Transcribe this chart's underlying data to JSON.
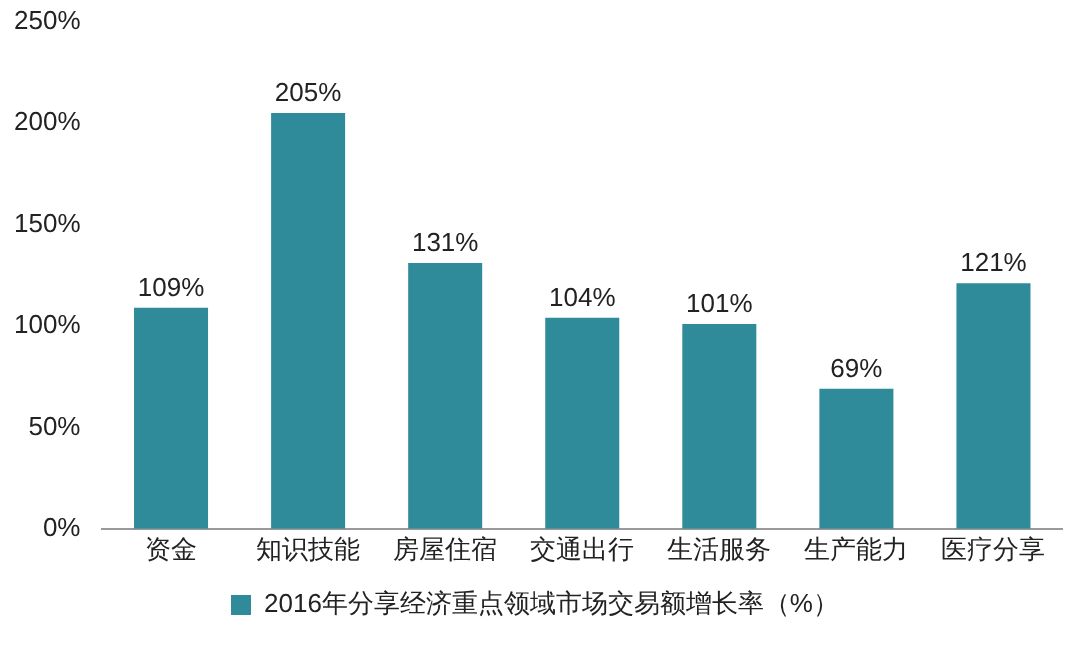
{
  "chart_data": {
    "type": "bar",
    "categories": [
      "资金",
      "知识技能",
      "房屋住宿",
      "交通出行",
      "生活服务",
      "生产能力",
      "医疗分享"
    ],
    "series": [
      {
        "name": "2016年分享经济重点领域市场交易额增长率（%）",
        "color": "#2f8a9a",
        "values": [
          109,
          205,
          131,
          104,
          101,
          69,
          121
        ],
        "value_labels": [
          "109%",
          "205%",
          "131%",
          "104%",
          "101%",
          "69%",
          "121%"
        ]
      }
    ],
    "ylim": [
      0,
      250
    ],
    "yticks": [
      {
        "value": 0,
        "label": "0%"
      },
      {
        "value": 50,
        "label": "50%"
      },
      {
        "value": 100,
        "label": "100%"
      },
      {
        "value": 150,
        "label": "150%"
      },
      {
        "value": 200,
        "label": "200%"
      },
      {
        "value": 250,
        "label": "250%"
      }
    ],
    "grid": false,
    "legend": "bottom"
  }
}
